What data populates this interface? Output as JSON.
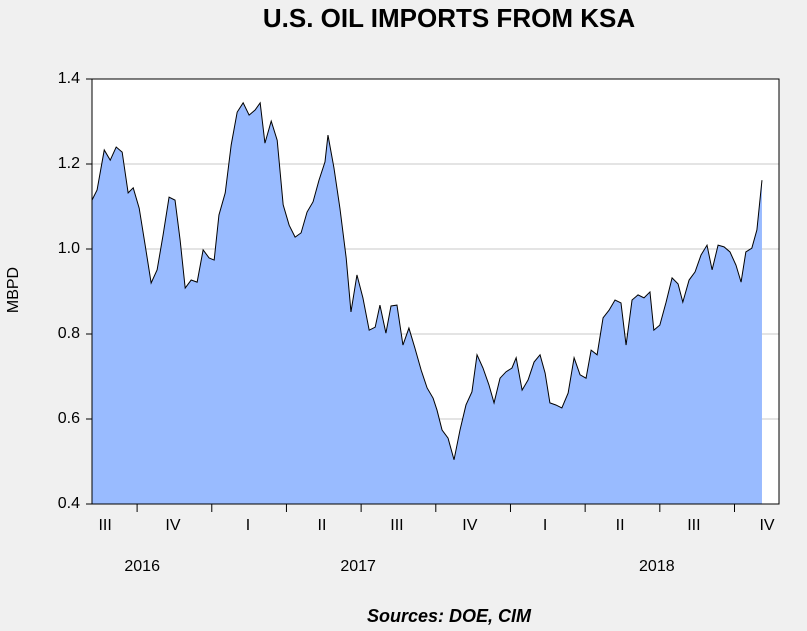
{
  "chart_data": {
    "type": "area",
    "title": "U.S. OIL IMPORTS FROM KSA",
    "y_label": "MBPD",
    "source": "Sources:  DOE, CIM",
    "fill_color": "#99bbff",
    "line_color": "#000000",
    "grid": true,
    "xlim": [
      2016.599,
      2018.899
    ],
    "ylim": [
      0.4,
      1.4
    ],
    "yticks": [
      {
        "value": 0.4,
        "label": "0.4"
      },
      {
        "value": 0.6,
        "label": "0.6"
      },
      {
        "value": 0.8,
        "label": "0.8"
      },
      {
        "value": 1.0,
        "label": "1.0"
      },
      {
        "value": 1.2,
        "label": "1.2"
      },
      {
        "value": 1.4,
        "label": "1.4"
      }
    ],
    "quarter_bounds": [
      2016.75,
      2017,
      2017.25,
      2017.5,
      2017.75,
      2018,
      2018.25,
      2018.5,
      2018.75
    ],
    "xticks": [
      {
        "value": 2016.643,
        "label": "III"
      },
      {
        "value": 2016.87,
        "label": "IV"
      },
      {
        "value": 2017.121,
        "label": "I"
      },
      {
        "value": 2017.369,
        "label": "II"
      },
      {
        "value": 2017.62,
        "label": "III"
      },
      {
        "value": 2017.864,
        "label": "IV"
      },
      {
        "value": 2018.116,
        "label": "I"
      },
      {
        "value": 2018.367,
        "label": "II"
      },
      {
        "value": 2018.614,
        "label": "III"
      },
      {
        "value": 2018.859,
        "label": "IV"
      }
    ],
    "year_labels": [
      {
        "value": 2016.767,
        "label": "2016"
      },
      {
        "value": 2017.49,
        "label": "2017"
      },
      {
        "value": 2018.49,
        "label": "2018"
      }
    ],
    "x": [
      2016.599,
      2016.616,
      2016.64,
      2016.66,
      2016.68,
      2016.7,
      2016.72,
      2016.737,
      2016.757,
      2016.777,
      2016.797,
      2016.817,
      2016.837,
      2016.857,
      2016.877,
      2016.894,
      2016.911,
      2016.931,
      2016.951,
      2016.971,
      2016.991,
      2017.008,
      2017.024,
      2017.045,
      2017.065,
      2017.085,
      2017.105,
      2017.125,
      2017.145,
      2017.162,
      2017.178,
      2017.199,
      2017.219,
      2017.239,
      2017.259,
      2017.279,
      2017.299,
      2017.319,
      2017.339,
      2017.359,
      2017.379,
      2017.389,
      2017.409,
      2017.429,
      2017.45,
      2017.466,
      2017.486,
      2017.506,
      2017.527,
      2017.547,
      2017.563,
      2017.583,
      2017.6,
      2017.62,
      2017.64,
      2017.66,
      2017.68,
      2017.701,
      2017.721,
      2017.741,
      2017.754,
      2017.771,
      2017.791,
      2017.811,
      2017.831,
      2017.851,
      2017.871,
      2017.888,
      2017.908,
      2017.928,
      2017.945,
      2017.965,
      2017.985,
      2018.005,
      2018.019,
      2018.039,
      2018.059,
      2018.079,
      2018.099,
      2018.116,
      2018.132,
      2018.152,
      2018.172,
      2018.193,
      2018.213,
      2018.233,
      2018.253,
      2018.27,
      2018.29,
      2018.31,
      2018.33,
      2018.35,
      2018.37,
      2018.387,
      2018.407,
      2018.427,
      2018.447,
      2018.467,
      2018.48,
      2018.5,
      2018.521,
      2018.541,
      2018.561,
      2018.577,
      2018.598,
      2018.618,
      2018.638,
      2018.658,
      2018.675,
      2018.695,
      2018.715,
      2018.735,
      2018.755,
      2018.772,
      2018.788,
      2018.808,
      2018.825,
      2018.842
    ],
    "values": [
      1.115,
      1.139,
      1.233,
      1.209,
      1.24,
      1.228,
      1.132,
      1.144,
      1.096,
      1.009,
      0.92,
      0.951,
      1.033,
      1.122,
      1.115,
      1.021,
      0.908,
      0.927,
      0.922,
      0.998,
      0.979,
      0.974,
      1.08,
      1.132,
      1.245,
      1.322,
      1.344,
      1.315,
      1.327,
      1.344,
      1.249,
      1.301,
      1.256,
      1.104,
      1.056,
      1.028,
      1.038,
      1.087,
      1.111,
      1.162,
      1.205,
      1.268,
      1.191,
      1.096,
      0.979,
      0.852,
      0.939,
      0.885,
      0.809,
      0.816,
      0.868,
      0.802,
      0.866,
      0.868,
      0.774,
      0.814,
      0.767,
      0.715,
      0.673,
      0.649,
      0.621,
      0.574,
      0.555,
      0.504,
      0.574,
      0.633,
      0.664,
      0.751,
      0.72,
      0.68,
      0.638,
      0.696,
      0.711,
      0.72,
      0.744,
      0.668,
      0.692,
      0.734,
      0.751,
      0.708,
      0.638,
      0.633,
      0.626,
      0.661,
      0.744,
      0.704,
      0.696,
      0.762,
      0.751,
      0.838,
      0.856,
      0.88,
      0.873,
      0.774,
      0.88,
      0.892,
      0.885,
      0.899,
      0.809,
      0.821,
      0.875,
      0.932,
      0.918,
      0.875,
      0.927,
      0.946,
      0.986,
      1.009,
      0.951,
      1.009,
      1.005,
      0.993,
      0.962,
      0.922,
      0.993,
      1.002,
      1.045,
      1.162
    ]
  }
}
